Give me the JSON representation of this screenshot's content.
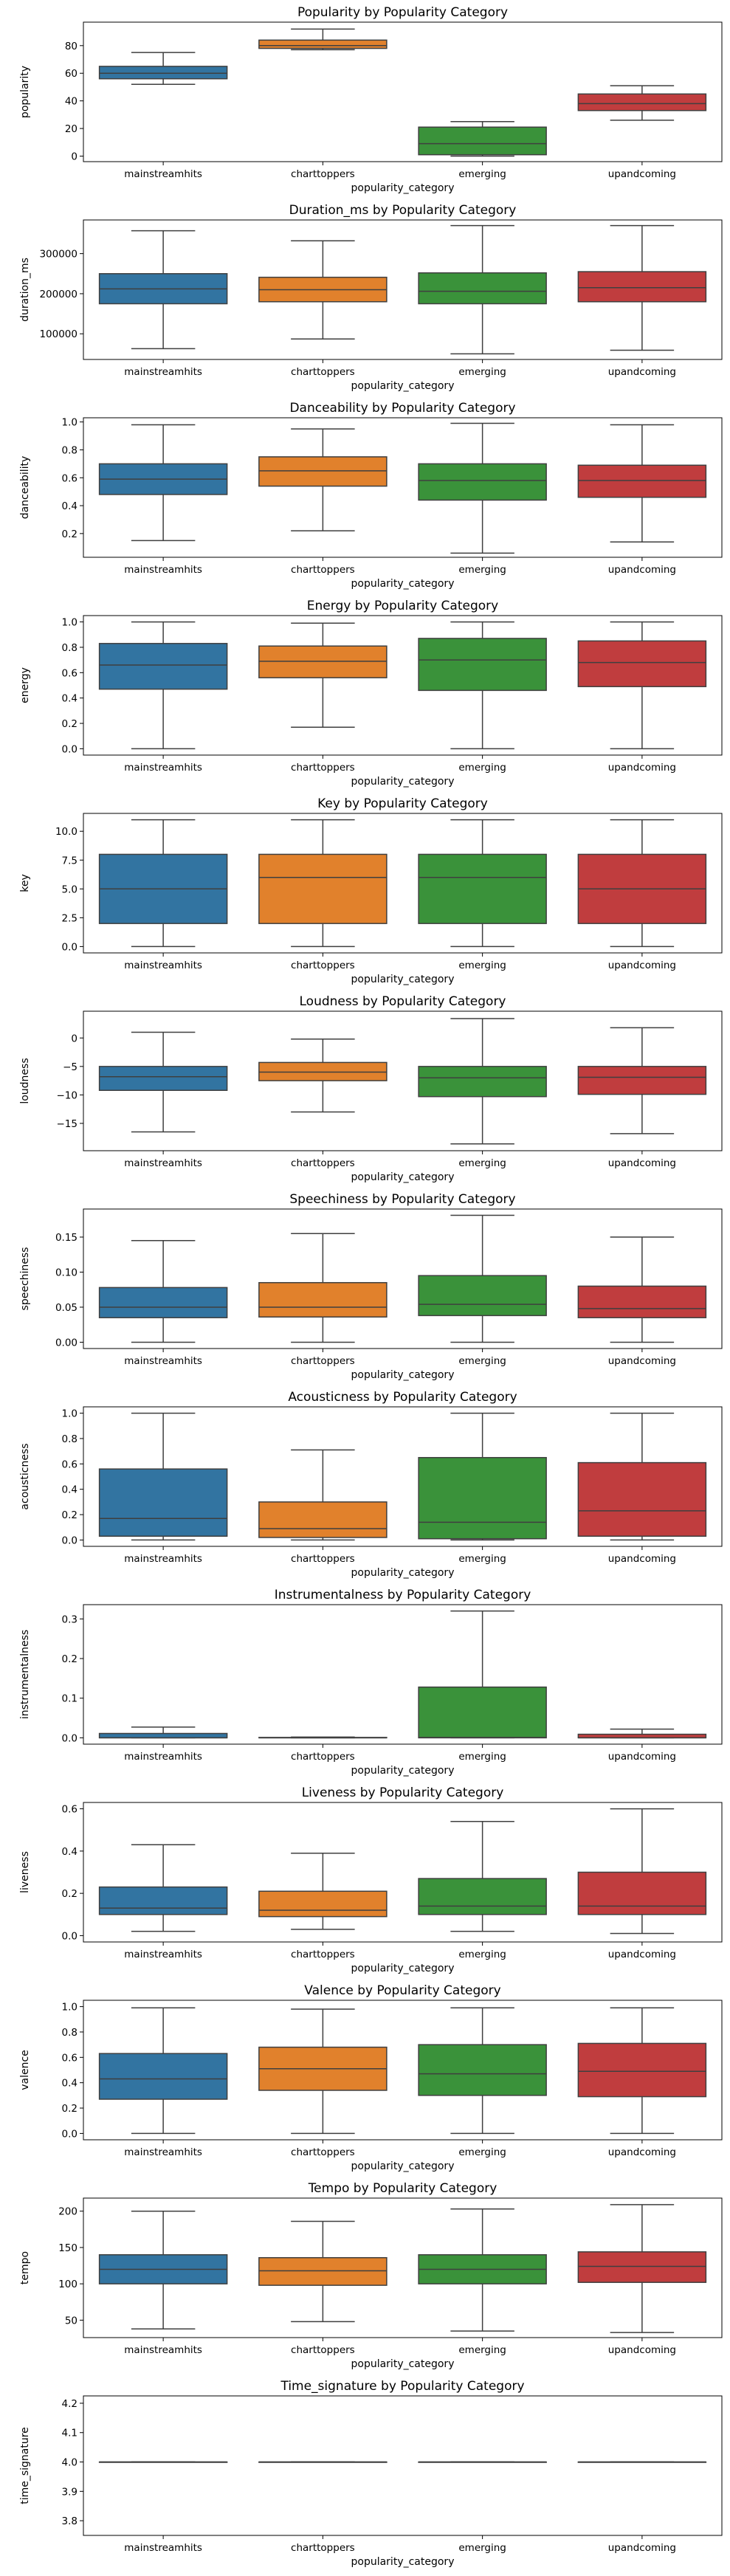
{
  "categories": [
    "mainstreamhits",
    "charttoppers",
    "emerging",
    "upandcoming"
  ],
  "colors": [
    "#3274a1",
    "#e1812c",
    "#3a923a",
    "#c03d3e"
  ],
  "chart_data": [
    {
      "type": "box",
      "title": "Popularity by Popularity Category",
      "xlabel": "popularity_category",
      "ylabel": "popularity",
      "yticks": [
        0,
        20,
        40,
        60,
        80
      ],
      "ytick_labels": [
        "0",
        "20",
        "40",
        "60",
        "80"
      ],
      "ylim": [
        -4,
        97
      ],
      "boxes": [
        {
          "whislo": 52,
          "q1": 56,
          "med": 60,
          "q3": 65,
          "whishi": 75
        },
        {
          "whislo": 77,
          "q1": 78,
          "med": 80,
          "q3": 84,
          "whishi": 92
        },
        {
          "whislo": 0,
          "q1": 1,
          "med": 9,
          "q3": 21,
          "whishi": 25
        },
        {
          "whislo": 26,
          "q1": 33,
          "med": 38,
          "q3": 45,
          "whishi": 51
        }
      ]
    },
    {
      "type": "box",
      "title": "Duration_ms by Popularity Category",
      "xlabel": "popularity_category",
      "ylabel": "duration_ms",
      "yticks": [
        100000,
        200000,
        300000
      ],
      "ytick_labels": [
        "100000",
        "200000",
        "300000"
      ],
      "ylim": [
        36000,
        384000
      ],
      "boxes": [
        {
          "whislo": 63000,
          "q1": 175000,
          "med": 212000,
          "q3": 250000,
          "whishi": 357000
        },
        {
          "whislo": 87000,
          "q1": 180000,
          "med": 210000,
          "q3": 241000,
          "whishi": 332000
        },
        {
          "whislo": 50000,
          "q1": 175000,
          "med": 206000,
          "q3": 252000,
          "whishi": 370000
        },
        {
          "whislo": 59000,
          "q1": 180000,
          "med": 215000,
          "q3": 255000,
          "whishi": 370000
        }
      ]
    },
    {
      "type": "box",
      "title": "Danceability by Popularity Category",
      "xlabel": "popularity_category",
      "ylabel": "danceability",
      "yticks": [
        0.2,
        0.4,
        0.6,
        0.8,
        1.0
      ],
      "ytick_labels": [
        "0.2",
        "0.4",
        "0.6",
        "0.8",
        "1.0"
      ],
      "ylim": [
        0.03,
        1.03
      ],
      "boxes": [
        {
          "whislo": 0.15,
          "q1": 0.48,
          "med": 0.59,
          "q3": 0.7,
          "whishi": 0.98
        },
        {
          "whislo": 0.22,
          "q1": 0.54,
          "med": 0.65,
          "q3": 0.75,
          "whishi": 0.95
        },
        {
          "whislo": 0.06,
          "q1": 0.44,
          "med": 0.58,
          "q3": 0.7,
          "whishi": 0.99
        },
        {
          "whislo": 0.14,
          "q1": 0.46,
          "med": 0.58,
          "q3": 0.69,
          "whishi": 0.98
        }
      ]
    },
    {
      "type": "box",
      "title": "Energy by Popularity Category",
      "xlabel": "popularity_category",
      "ylabel": "energy",
      "yticks": [
        0.0,
        0.2,
        0.4,
        0.6,
        0.8,
        1.0
      ],
      "ytick_labels": [
        "0.0",
        "0.2",
        "0.4",
        "0.6",
        "0.8",
        "1.0"
      ],
      "ylim": [
        -0.05,
        1.05
      ],
      "boxes": [
        {
          "whislo": 0.0,
          "q1": 0.47,
          "med": 0.66,
          "q3": 0.83,
          "whishi": 1.0
        },
        {
          "whislo": 0.17,
          "q1": 0.56,
          "med": 0.69,
          "q3": 0.81,
          "whishi": 0.99
        },
        {
          "whislo": 0.0,
          "q1": 0.46,
          "med": 0.7,
          "q3": 0.87,
          "whishi": 1.0
        },
        {
          "whislo": 0.0,
          "q1": 0.49,
          "med": 0.68,
          "q3": 0.85,
          "whishi": 1.0
        }
      ]
    },
    {
      "type": "box",
      "title": "Key by Popularity Category",
      "xlabel": "popularity_category",
      "ylabel": "key",
      "yticks": [
        0.0,
        2.5,
        5.0,
        7.5,
        10.0
      ],
      "ytick_labels": [
        "0.0",
        "2.5",
        "5.0",
        "7.5",
        "10.0"
      ],
      "ylim": [
        -0.55,
        11.55
      ],
      "boxes": [
        {
          "whislo": 0,
          "q1": 2,
          "med": 5,
          "q3": 8,
          "whishi": 11
        },
        {
          "whislo": 0,
          "q1": 2,
          "med": 6,
          "q3": 8,
          "whishi": 11
        },
        {
          "whislo": 0,
          "q1": 2,
          "med": 6,
          "q3": 8,
          "whishi": 11
        },
        {
          "whislo": 0,
          "q1": 2,
          "med": 5,
          "q3": 8,
          "whishi": 11
        }
      ]
    },
    {
      "type": "box",
      "title": "Loudness by Popularity Category",
      "xlabel": "popularity_category",
      "ylabel": "loudness",
      "yticks": [
        -15,
        -10,
        -5,
        0
      ],
      "ytick_labels": [
        "−15",
        "−10",
        "−5",
        "0"
      ],
      "ylim": [
        -19.8,
        4.7
      ],
      "boxes": [
        {
          "whislo": -16.5,
          "q1": -9.2,
          "med": -6.8,
          "q3": -5.0,
          "whishi": 1.0
        },
        {
          "whislo": -13.0,
          "q1": -7.5,
          "med": -6.0,
          "q3": -4.3,
          "whishi": -0.2
        },
        {
          "whislo": -18.6,
          "q1": -10.3,
          "med": -7.0,
          "q3": -5.0,
          "whishi": 3.4
        },
        {
          "whislo": -16.8,
          "q1": -9.9,
          "med": -6.9,
          "q3": -5.0,
          "whishi": 1.8
        }
      ]
    },
    {
      "type": "box",
      "title": "Speechiness by Popularity Category",
      "xlabel": "popularity_category",
      "ylabel": "speechiness",
      "yticks": [
        0.0,
        0.05,
        0.1,
        0.15
      ],
      "ytick_labels": [
        "0.00",
        "0.05",
        "0.10",
        "0.15"
      ],
      "ylim": [
        -0.009,
        0.19
      ],
      "boxes": [
        {
          "whislo": 0.0,
          "q1": 0.035,
          "med": 0.05,
          "q3": 0.078,
          "whishi": 0.145
        },
        {
          "whislo": 0.0,
          "q1": 0.036,
          "med": 0.05,
          "q3": 0.085,
          "whishi": 0.155
        },
        {
          "whislo": 0.0,
          "q1": 0.038,
          "med": 0.054,
          "q3": 0.095,
          "whishi": 0.181
        },
        {
          "whislo": 0.0,
          "q1": 0.035,
          "med": 0.048,
          "q3": 0.08,
          "whishi": 0.15
        }
      ]
    },
    {
      "type": "box",
      "title": "Acousticness by Popularity Category",
      "xlabel": "popularity_category",
      "ylabel": "acousticness",
      "yticks": [
        0.0,
        0.2,
        0.4,
        0.6,
        0.8,
        1.0
      ],
      "ytick_labels": [
        "0.0",
        "0.2",
        "0.4",
        "0.6",
        "0.8",
        "1.0"
      ],
      "ylim": [
        -0.05,
        1.05
      ],
      "boxes": [
        {
          "whislo": 0.0,
          "q1": 0.03,
          "med": 0.17,
          "q3": 0.56,
          "whishi": 1.0
        },
        {
          "whislo": 0.0,
          "q1": 0.02,
          "med": 0.09,
          "q3": 0.3,
          "whishi": 0.71
        },
        {
          "whislo": 0.0,
          "q1": 0.01,
          "med": 0.14,
          "q3": 0.65,
          "whishi": 1.0
        },
        {
          "whislo": 0.0,
          "q1": 0.03,
          "med": 0.23,
          "q3": 0.61,
          "whishi": 1.0
        }
      ]
    },
    {
      "type": "box",
      "title": "Instrumentalness by Popularity Category",
      "xlabel": "popularity_category",
      "ylabel": "instrumentalness",
      "yticks": [
        0.0,
        0.1,
        0.2,
        0.3
      ],
      "ytick_labels": [
        "0.0",
        "0.1",
        "0.2",
        "0.3"
      ],
      "ylim": [
        -0.016,
        0.336
      ],
      "boxes": [
        {
          "whislo": 0.0,
          "q1": 0.0,
          "med": 0.0,
          "q3": 0.011,
          "whishi": 0.027
        },
        {
          "whislo": 0.0,
          "q1": 0.0,
          "med": 0.0,
          "q3": 0.001,
          "whishi": 0.002
        },
        {
          "whislo": 0.0,
          "q1": 0.0,
          "med": 0.001,
          "q3": 0.128,
          "whishi": 0.32
        },
        {
          "whislo": 0.0,
          "q1": 0.0,
          "med": 0.0,
          "q3": 0.009,
          "whishi": 0.022
        }
      ]
    },
    {
      "type": "box",
      "title": "Liveness by Popularity Category",
      "xlabel": "popularity_category",
      "ylabel": "liveness",
      "yticks": [
        0.0,
        0.2,
        0.4,
        0.6
      ],
      "ytick_labels": [
        "0.0",
        "0.2",
        "0.4",
        "0.6"
      ],
      "ylim": [
        -0.03,
        0.63
      ],
      "boxes": [
        {
          "whislo": 0.02,
          "q1": 0.1,
          "med": 0.13,
          "q3": 0.23,
          "whishi": 0.43
        },
        {
          "whislo": 0.03,
          "q1": 0.09,
          "med": 0.12,
          "q3": 0.21,
          "whishi": 0.39
        },
        {
          "whislo": 0.02,
          "q1": 0.1,
          "med": 0.14,
          "q3": 0.27,
          "whishi": 0.54
        },
        {
          "whislo": 0.01,
          "q1": 0.1,
          "med": 0.14,
          "q3": 0.3,
          "whishi": 0.6
        }
      ]
    },
    {
      "type": "box",
      "title": "Valence by Popularity Category",
      "xlabel": "popularity_category",
      "ylabel": "valence",
      "yticks": [
        0.0,
        0.2,
        0.4,
        0.6,
        0.8,
        1.0
      ],
      "ytick_labels": [
        "0.0",
        "0.2",
        "0.4",
        "0.6",
        "0.8",
        "1.0"
      ],
      "ylim": [
        -0.05,
        1.05
      ],
      "boxes": [
        {
          "whislo": 0.0,
          "q1": 0.27,
          "med": 0.43,
          "q3": 0.63,
          "whishi": 0.99
        },
        {
          "whislo": 0.0,
          "q1": 0.34,
          "med": 0.51,
          "q3": 0.68,
          "whishi": 0.98
        },
        {
          "whislo": 0.0,
          "q1": 0.3,
          "med": 0.47,
          "q3": 0.7,
          "whishi": 0.99
        },
        {
          "whislo": 0.0,
          "q1": 0.29,
          "med": 0.49,
          "q3": 0.71,
          "whishi": 0.99
        }
      ]
    },
    {
      "type": "box",
      "title": "Tempo by Popularity Category",
      "xlabel": "popularity_category",
      "ylabel": "tempo",
      "yticks": [
        50,
        100,
        150,
        200
      ],
      "ytick_labels": [
        "50",
        "100",
        "150",
        "200"
      ],
      "ylim": [
        26,
        218
      ],
      "boxes": [
        {
          "whislo": 38,
          "q1": 100,
          "med": 120,
          "q3": 140,
          "whishi": 200
        },
        {
          "whislo": 48,
          "q1": 98,
          "med": 118,
          "q3": 136,
          "whishi": 186
        },
        {
          "whislo": 35,
          "q1": 100,
          "med": 120,
          "q3": 140,
          "whishi": 203
        },
        {
          "whislo": 33,
          "q1": 102,
          "med": 124,
          "q3": 144,
          "whishi": 209
        }
      ]
    },
    {
      "type": "box",
      "title": "Time_signature by Popularity Category",
      "xlabel": "popularity_category",
      "ylabel": "time_signature",
      "yticks": [
        3.8,
        3.9,
        4.0,
        4.1,
        4.2
      ],
      "ytick_labels": [
        "3.8",
        "3.9",
        "4.0",
        "4.1",
        "4.2"
      ],
      "ylim": [
        3.75,
        4.225
      ],
      "boxes": [
        {
          "whislo": 4.0,
          "q1": 4.0,
          "med": 4.0,
          "q3": 4.0,
          "whishi": 4.0
        },
        {
          "whislo": 4.0,
          "q1": 4.0,
          "med": 4.0,
          "q3": 4.0,
          "whishi": 4.0
        },
        {
          "whislo": 4.0,
          "q1": 4.0,
          "med": 4.0,
          "q3": 4.0,
          "whishi": 4.0
        },
        {
          "whislo": 4.0,
          "q1": 4.0,
          "med": 4.0,
          "q3": 4.0,
          "whishi": 4.0
        }
      ]
    }
  ]
}
